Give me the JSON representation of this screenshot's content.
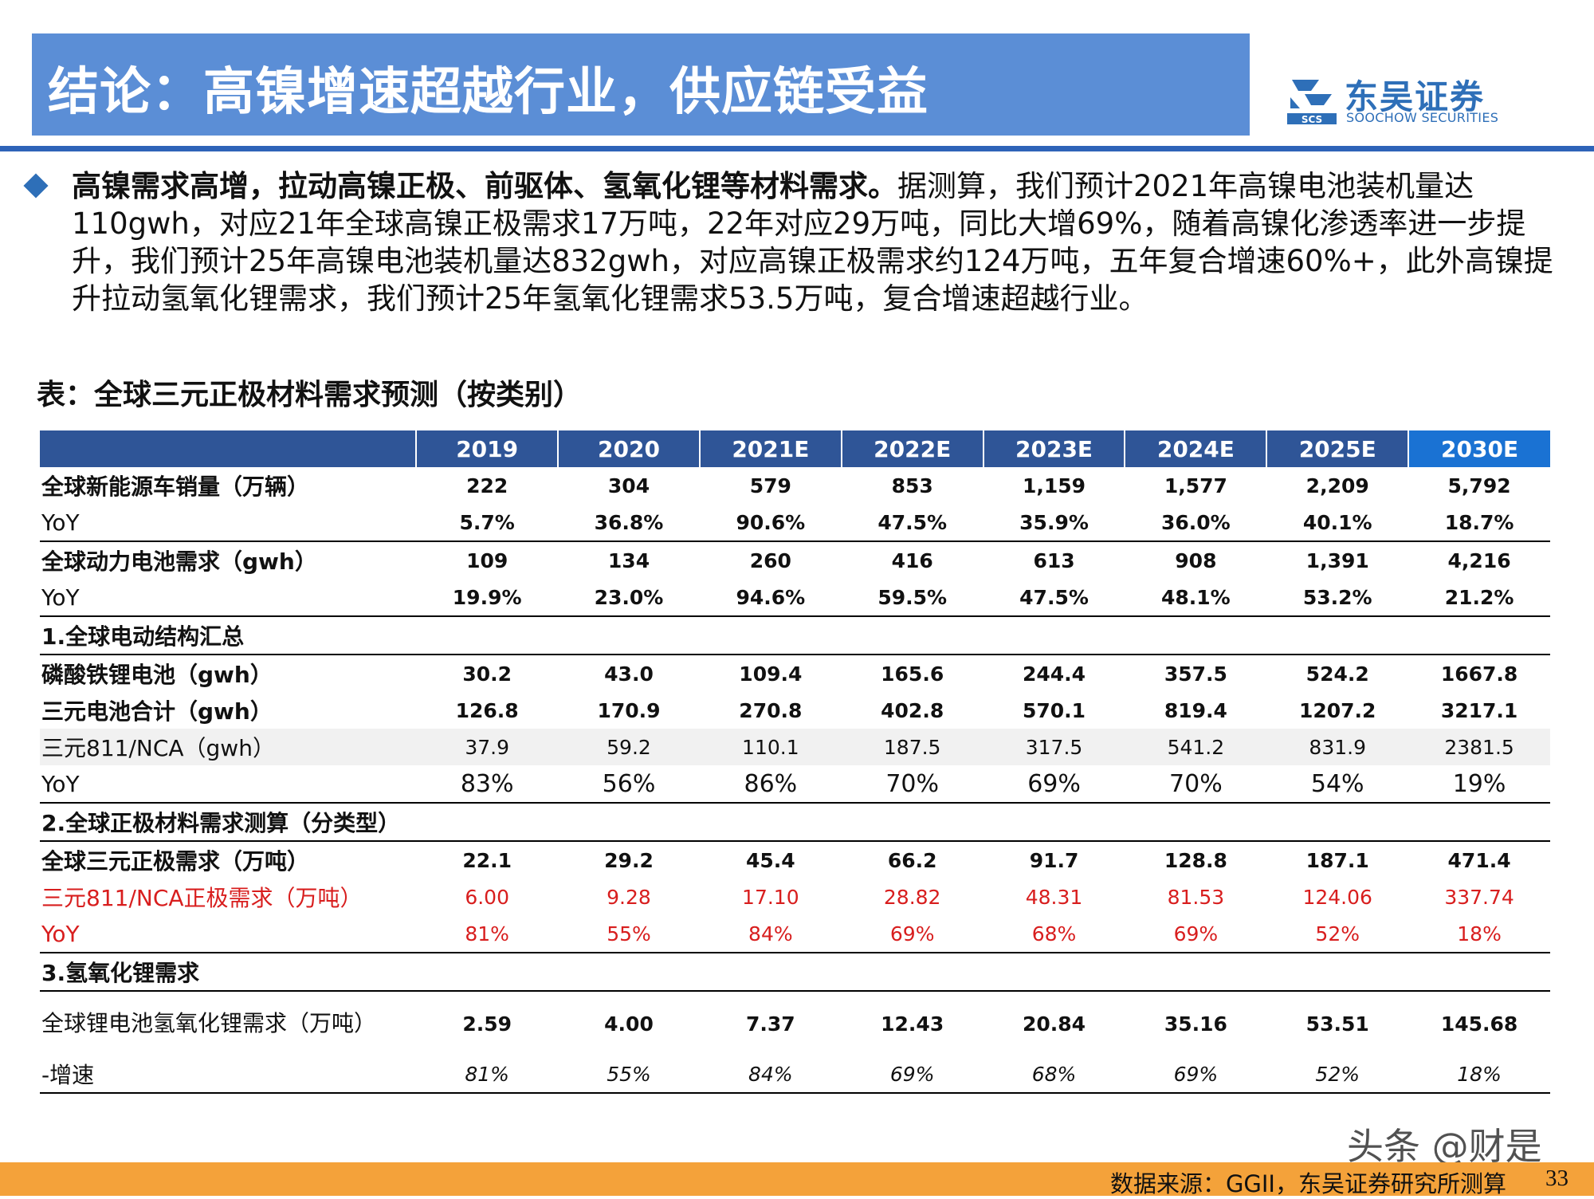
{
  "header": {
    "title": "结论：高镍增速超越行业，供应链受益",
    "logo_cn": "东吴证券",
    "logo_en": "SOOCHOW SECURITIES",
    "logo_mark_text": "SCS"
  },
  "summary": {
    "bold": "高镍需求高增，拉动高镍正极、前驱体、氢氧化锂等材料需求。",
    "text": "据测算，我们预计2021年高镍电池装机量达110gwh，对应21年全球高镍正极需求17万吨，22年对应29万吨，同比大增69%，随着高镍化渗透率进一步提升，我们预计25年高镍电池装机量达832gwh，对应高镍正极需求约124万吨，五年复合增速60%+，此外高镍提升拉动氢氧化锂需求，我们预计25年氢氧化锂需求53.5万吨，复合增速超越行业。"
  },
  "table": {
    "title": "表：全球三元正极材料需求预测（按类别）",
    "columns": [
      "2019",
      "2020",
      "2021E",
      "2022E",
      "2023E",
      "2024E",
      "2025E",
      "2030E"
    ],
    "rows": {
      "ev_sales": {
        "label": "全球新能源车销量（万辆）",
        "values": [
          "222",
          "304",
          "579",
          "853",
          "1,159",
          "1,577",
          "2,209",
          "5,792"
        ]
      },
      "ev_yoy": {
        "label": "YoY",
        "values": [
          "5.7%",
          "36.8%",
          "90.6%",
          "47.5%",
          "35.9%",
          "36.0%",
          "40.1%",
          "18.7%"
        ]
      },
      "battery": {
        "label": "全球动力电池需求（gwh）",
        "values": [
          "109",
          "134",
          "260",
          "416",
          "613",
          "908",
          "1,391",
          "4,216"
        ]
      },
      "battery_yoy": {
        "label": "YoY",
        "values": [
          "19.9%",
          "23.0%",
          "94.6%",
          "59.5%",
          "47.5%",
          "48.1%",
          "53.2%",
          "21.2%"
        ]
      },
      "sec1": {
        "label": "1.全球电动结构汇总"
      },
      "lfp": {
        "label": "磷酸铁锂电池（gwh）",
        "values": [
          "30.2",
          "43.0",
          "109.4",
          "165.6",
          "244.4",
          "357.5",
          "524.2",
          "1667.8"
        ]
      },
      "ternary": {
        "label": "三元电池合计（gwh）",
        "values": [
          "126.8",
          "170.9",
          "270.8",
          "402.8",
          "570.1",
          "819.4",
          "1207.2",
          "3217.1"
        ]
      },
      "ncm811": {
        "label": "三元811/NCA（gwh）",
        "values": [
          "37.9",
          "59.2",
          "110.1",
          "187.5",
          "317.5",
          "541.2",
          "831.9",
          "2381.5"
        ]
      },
      "ncm811_yoy": {
        "label": "YoY",
        "values": [
          "83%",
          "56%",
          "86%",
          "70%",
          "69%",
          "70%",
          "54%",
          "19%"
        ]
      },
      "sec2": {
        "label": "2.全球正极材料需求测算（分类型）"
      },
      "cathode": {
        "label": "全球三元正极需求（万吨）",
        "values": [
          "22.1",
          "29.2",
          "45.4",
          "66.2",
          "91.7",
          "128.8",
          "187.1",
          "471.4"
        ]
      },
      "cathode811": {
        "label": "三元811/NCA正极需求（万吨）",
        "values": [
          "6.00",
          "9.28",
          "17.10",
          "28.82",
          "48.31",
          "81.53",
          "124.06",
          "337.74"
        ]
      },
      "cathode811_yoy": {
        "label": "YoY",
        "values": [
          "81%",
          "55%",
          "84%",
          "69%",
          "68%",
          "69%",
          "52%",
          "18%"
        ]
      },
      "sec3": {
        "label": "3.氢氧化锂需求"
      },
      "lioh": {
        "label": "全球锂电池氢氧化锂需求（万吨）",
        "values": [
          "2.59",
          "4.00",
          "7.37",
          "12.43",
          "20.84",
          "35.16",
          "53.51",
          "145.68"
        ]
      },
      "lioh_growth": {
        "label": "-增速",
        "values": [
          "81%",
          "55%",
          "84%",
          "69%",
          "68%",
          "69%",
          "52%",
          "18%"
        ]
      }
    }
  },
  "footer": {
    "source": "数据来源：GGII，东吴证券研究所测算",
    "page": "33",
    "watermark": "头条 @财是"
  },
  "colors": {
    "title_bg": "#5b8ed6",
    "header_line": "#2e63b8",
    "table_header": "#2f5597",
    "table_header_highlight": "#1a72d3",
    "red_text": "#d81e1e",
    "footer_bar": "#f4a23a"
  }
}
